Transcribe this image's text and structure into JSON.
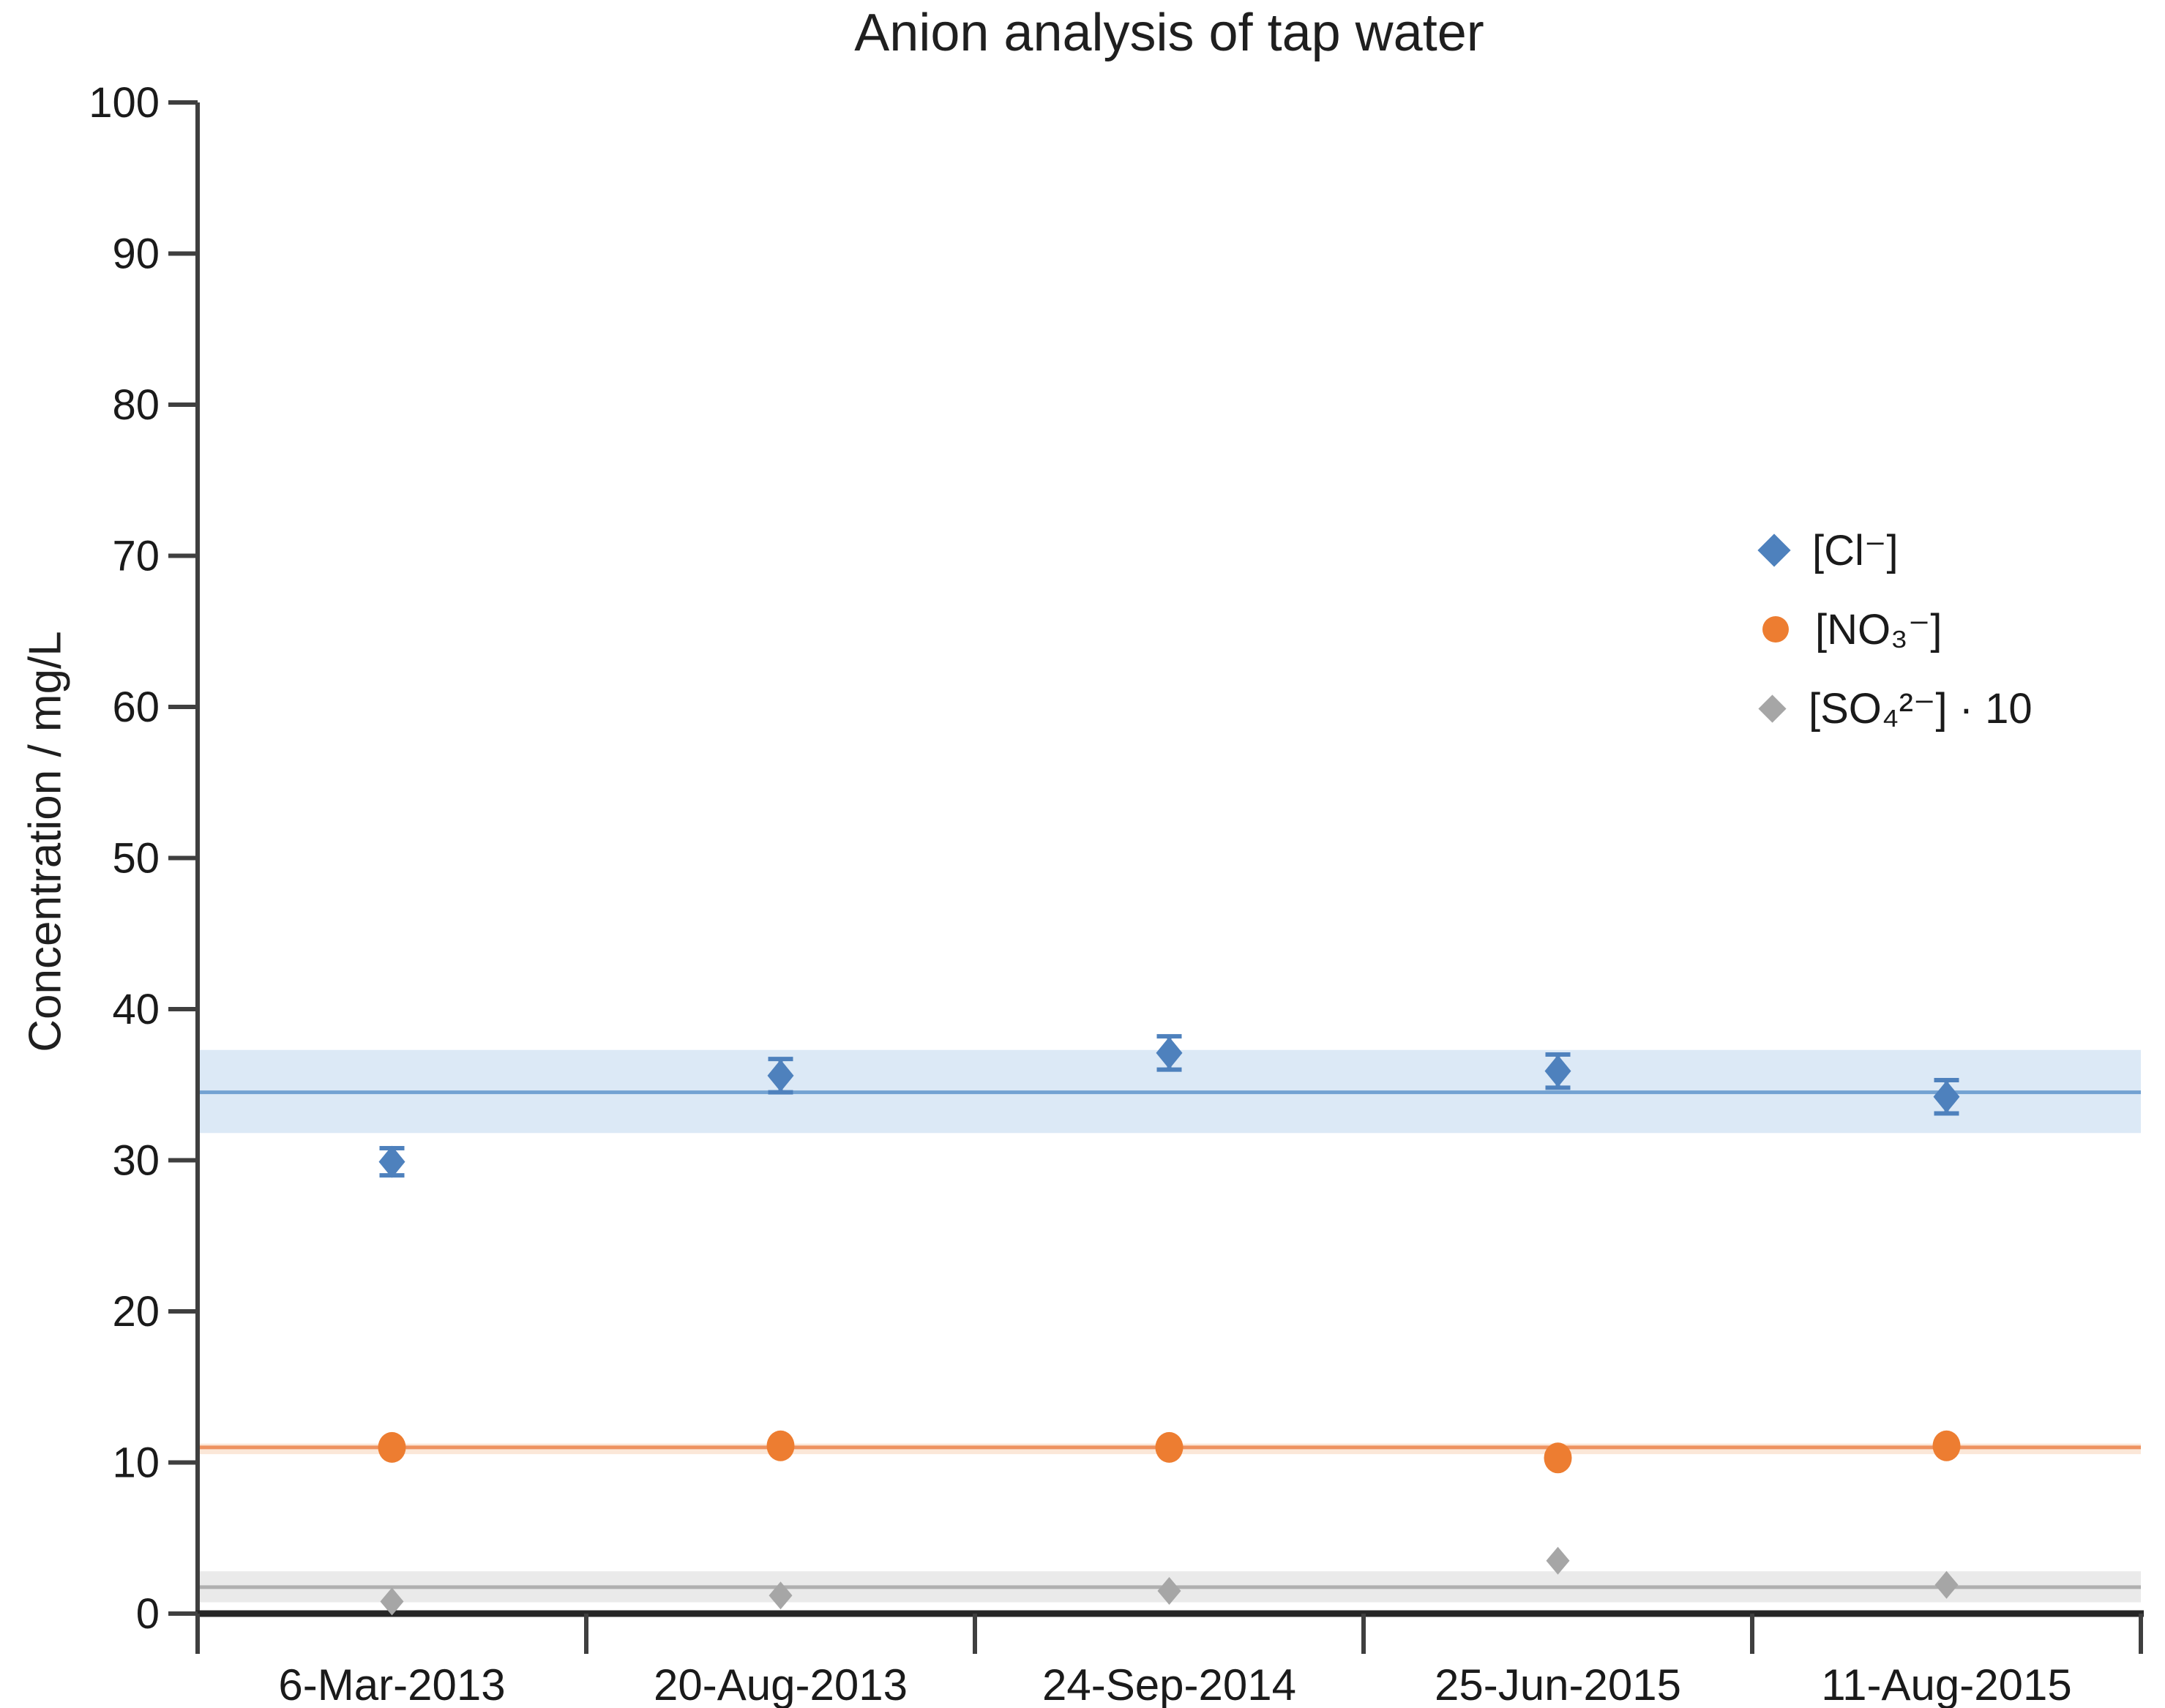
{
  "chart_data": {
    "type": "scatter",
    "title": "Anion analysis of tap water",
    "ylabel": "Concentration / mg/L",
    "xlabel": "",
    "ylim": [
      0,
      100
    ],
    "y_ticks": [
      0,
      10,
      20,
      30,
      40,
      50,
      60,
      70,
      80,
      90,
      100
    ],
    "grid": "off",
    "legend_position": "upper right inside plot",
    "categories": [
      "6-Mar-2013",
      "20-Aug-2013",
      "24-Sep-2014",
      "25-Jun-2015",
      "11-Aug-2015"
    ],
    "series": [
      {
        "name": "[Cl⁻]",
        "marker": "diamond",
        "color": "#4E81BD",
        "values": [
          29.9,
          35.6,
          37.1,
          35.9,
          34.2
        ],
        "errors": [
          0.9,
          1.1,
          1.1,
          1.1,
          1.1
        ],
        "mean_line": 34.5,
        "band": [
          31.8,
          37.3
        ],
        "line_color": "#73A2D2",
        "band_color": "#DCE9F6"
      },
      {
        "name": "[NO₃⁻]",
        "marker": "circle",
        "color": "#ED7D31",
        "values": [
          11.0,
          11.1,
          11.0,
          10.3,
          11.1
        ],
        "errors": null,
        "mean_line": 11.0,
        "band": [
          10.55,
          11.25
        ],
        "line_color": "#EE9260",
        "band_color": "#FBE7D8"
      },
      {
        "name": "[SO₄²⁻]  ·  10",
        "marker": "diamond",
        "color": "#A6A6A6",
        "values": [
          0.8,
          1.2,
          1.5,
          3.5,
          1.9
        ],
        "errors": null,
        "mean_line": 1.75,
        "band": [
          0.75,
          2.8
        ],
        "line_color": "#AFAFAF",
        "band_color": "#EAEAEA"
      }
    ]
  }
}
